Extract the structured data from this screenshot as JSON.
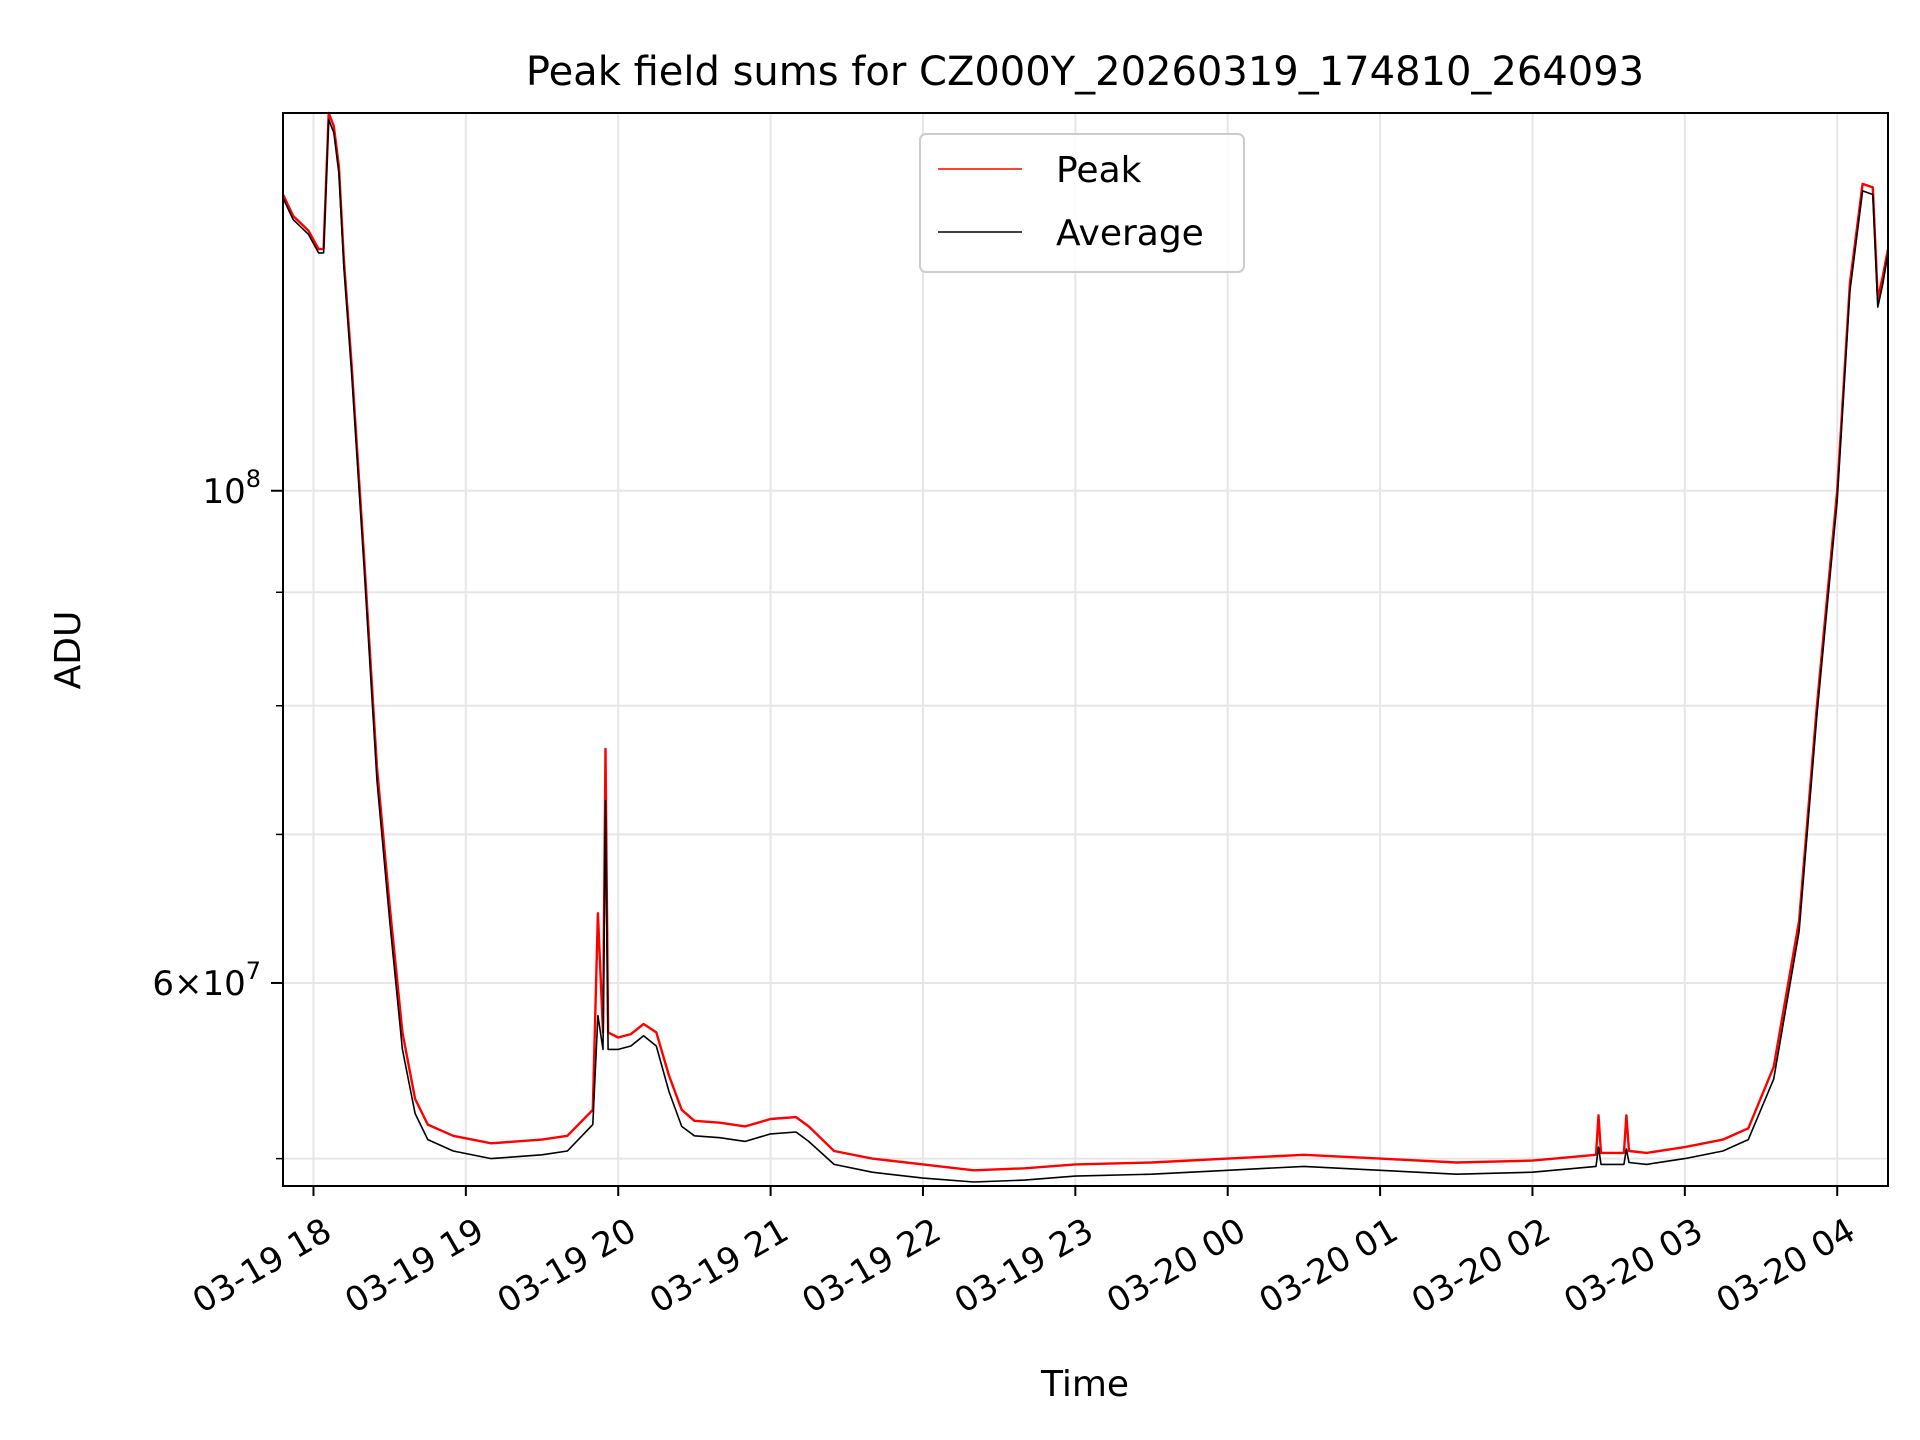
{
  "chart_data": {
    "type": "line",
    "title": "Peak field sums for CZ000Y_20260319_174810_264093",
    "xlabel": "Time",
    "ylabel": "ADU",
    "x_axis": {
      "kind": "datetime",
      "xlim": [
        "2026-03-19 17:48",
        "2026-03-20 04:20"
      ],
      "ticks": [
        {
          "t": "2026-03-19 18:00",
          "label": "03-19 18"
        },
        {
          "t": "2026-03-19 19:00",
          "label": "03-19 19"
        },
        {
          "t": "2026-03-19 20:00",
          "label": "03-19 20"
        },
        {
          "t": "2026-03-19 21:00",
          "label": "03-19 21"
        },
        {
          "t": "2026-03-19 22:00",
          "label": "03-19 22"
        },
        {
          "t": "2026-03-19 23:00",
          "label": "03-19 23"
        },
        {
          "t": "2026-03-20 00:00",
          "label": "03-20 00"
        },
        {
          "t": "2026-03-20 01:00",
          "label": "03-20 01"
        },
        {
          "t": "2026-03-20 02:00",
          "label": "03-20 02"
        },
        {
          "t": "2026-03-20 03:00",
          "label": "03-20 03"
        },
        {
          "t": "2026-03-20 04:00",
          "label": "03-20 04"
        }
      ]
    },
    "y_axis": {
      "scale": "log",
      "ylim": [
        48600000,
        148000000
      ],
      "major_ticks": [
        {
          "value": 100000000,
          "base": "10",
          "exp": "8"
        },
        {
          "value": 60000000,
          "mantissa": "6",
          "times": "×",
          "base": "10",
          "exp": "7"
        }
      ],
      "minor_ticks": [
        50000000,
        70000000,
        80000000,
        90000000,
        200000000
      ]
    },
    "grid": true,
    "legend": {
      "placement": "upper-center",
      "entries": [
        "Peak",
        "Average"
      ]
    },
    "series": [
      {
        "name": "Peak",
        "color": "#ff0000",
        "points": [
          [
            "2026-03-19 17:48",
            136000000
          ],
          [
            "2026-03-19 17:52",
            133000000
          ],
          [
            "2026-03-19 17:58",
            131000000
          ],
          [
            "2026-03-19 18:02",
            128500000
          ],
          [
            "2026-03-19 18:04",
            128500000
          ],
          [
            "2026-03-19 18:06",
            148000000
          ],
          [
            "2026-03-19 18:08",
            146000000
          ],
          [
            "2026-03-19 18:10",
            140000000
          ],
          [
            "2026-03-19 18:12",
            127000000
          ],
          [
            "2026-03-19 18:15",
            114000000
          ],
          [
            "2026-03-19 18:20",
            93000000
          ],
          [
            "2026-03-19 18:25",
            75000000
          ],
          [
            "2026-03-19 18:30",
            65000000
          ],
          [
            "2026-03-19 18:35",
            57000000
          ],
          [
            "2026-03-19 18:40",
            53200000
          ],
          [
            "2026-03-19 18:45",
            51800000
          ],
          [
            "2026-03-19 18:55",
            51200000
          ],
          [
            "2026-03-19 19:10",
            50800000
          ],
          [
            "2026-03-19 19:30",
            51000000
          ],
          [
            "2026-03-19 19:40",
            51200000
          ],
          [
            "2026-03-19 19:50",
            52600000
          ],
          [
            "2026-03-19 19:52",
            64500000
          ],
          [
            "2026-03-19 19:54",
            57000000
          ],
          [
            "2026-03-19 19:55",
            76500000
          ],
          [
            "2026-03-19 19:56",
            57000000
          ],
          [
            "2026-03-19 20:00",
            56700000
          ],
          [
            "2026-03-19 20:05",
            56900000
          ],
          [
            "2026-03-19 20:10",
            57500000
          ],
          [
            "2026-03-19 20:15",
            57000000
          ],
          [
            "2026-03-19 20:20",
            54500000
          ],
          [
            "2026-03-19 20:25",
            52600000
          ],
          [
            "2026-03-19 20:30",
            52000000
          ],
          [
            "2026-03-19 20:40",
            51900000
          ],
          [
            "2026-03-19 20:50",
            51700000
          ],
          [
            "2026-03-19 21:00",
            52100000
          ],
          [
            "2026-03-19 21:10",
            52200000
          ],
          [
            "2026-03-19 21:15",
            51700000
          ],
          [
            "2026-03-19 21:25",
            50400000
          ],
          [
            "2026-03-19 21:40",
            50000000
          ],
          [
            "2026-03-19 22:00",
            49700000
          ],
          [
            "2026-03-19 22:20",
            49400000
          ],
          [
            "2026-03-19 22:40",
            49500000
          ],
          [
            "2026-03-19 23:00",
            49700000
          ],
          [
            "2026-03-19 23:30",
            49800000
          ],
          [
            "2026-03-20 00:00",
            50000000
          ],
          [
            "2026-03-20 00:30",
            50200000
          ],
          [
            "2026-03-20 01:00",
            50000000
          ],
          [
            "2026-03-20 01:30",
            49800000
          ],
          [
            "2026-03-20 02:00",
            49900000
          ],
          [
            "2026-03-20 02:25",
            50200000
          ],
          [
            "2026-03-20 02:26",
            52300000
          ],
          [
            "2026-03-20 02:27",
            50300000
          ],
          [
            "2026-03-20 02:36",
            50300000
          ],
          [
            "2026-03-20 02:37",
            52300000
          ],
          [
            "2026-03-20 02:38",
            50400000
          ],
          [
            "2026-03-20 02:45",
            50300000
          ],
          [
            "2026-03-20 03:00",
            50600000
          ],
          [
            "2026-03-20 03:15",
            51000000
          ],
          [
            "2026-03-20 03:25",
            51600000
          ],
          [
            "2026-03-20 03:35",
            55000000
          ],
          [
            "2026-03-20 03:45",
            64000000
          ],
          [
            "2026-03-20 03:52",
            80000000
          ],
          [
            "2026-03-20 04:00",
            100000000
          ],
          [
            "2026-03-20 04:05",
            124000000
          ],
          [
            "2026-03-20 04:10",
            137500000
          ],
          [
            "2026-03-20 04:14",
            137000000
          ],
          [
            "2026-03-20 04:16",
            122000000
          ],
          [
            "2026-03-20 04:18",
            125000000
          ],
          [
            "2026-03-20 04:20",
            128500000
          ]
        ]
      },
      {
        "name": "Average",
        "color": "#000000",
        "points": [
          [
            "2026-03-19 17:48",
            135500000
          ],
          [
            "2026-03-19 17:52",
            132500000
          ],
          [
            "2026-03-19 17:58",
            130500000
          ],
          [
            "2026-03-19 18:02",
            128000000
          ],
          [
            "2026-03-19 18:04",
            128000000
          ],
          [
            "2026-03-19 18:06",
            147000000
          ],
          [
            "2026-03-19 18:08",
            145000000
          ],
          [
            "2026-03-19 18:10",
            139000000
          ],
          [
            "2026-03-19 18:12",
            126000000
          ],
          [
            "2026-03-19 18:15",
            113000000
          ],
          [
            "2026-03-19 18:20",
            92000000
          ],
          [
            "2026-03-19 18:25",
            74000000
          ],
          [
            "2026-03-19 18:30",
            64000000
          ],
          [
            "2026-03-19 18:35",
            56000000
          ],
          [
            "2026-03-19 18:40",
            52400000
          ],
          [
            "2026-03-19 18:45",
            51000000
          ],
          [
            "2026-03-19 18:55",
            50400000
          ],
          [
            "2026-03-19 19:10",
            50000000
          ],
          [
            "2026-03-19 19:30",
            50200000
          ],
          [
            "2026-03-19 19:40",
            50400000
          ],
          [
            "2026-03-19 19:50",
            51800000
          ],
          [
            "2026-03-19 19:52",
            58000000
          ],
          [
            "2026-03-19 19:54",
            56000000
          ],
          [
            "2026-03-19 19:55",
            72500000
          ],
          [
            "2026-03-19 19:56",
            56000000
          ],
          [
            "2026-03-19 20:00",
            56000000
          ],
          [
            "2026-03-19 20:05",
            56200000
          ],
          [
            "2026-03-19 20:10",
            56800000
          ],
          [
            "2026-03-19 20:15",
            56200000
          ],
          [
            "2026-03-19 20:20",
            53600000
          ],
          [
            "2026-03-19 20:25",
            51700000
          ],
          [
            "2026-03-19 20:30",
            51200000
          ],
          [
            "2026-03-19 20:40",
            51100000
          ],
          [
            "2026-03-19 20:50",
            50900000
          ],
          [
            "2026-03-19 21:00",
            51300000
          ],
          [
            "2026-03-19 21:10",
            51400000
          ],
          [
            "2026-03-19 21:15",
            50900000
          ],
          [
            "2026-03-19 21:25",
            49700000
          ],
          [
            "2026-03-19 21:40",
            49300000
          ],
          [
            "2026-03-19 22:00",
            49000000
          ],
          [
            "2026-03-19 22:20",
            48800000
          ],
          [
            "2026-03-19 22:40",
            48900000
          ],
          [
            "2026-03-19 23:00",
            49100000
          ],
          [
            "2026-03-19 23:30",
            49200000
          ],
          [
            "2026-03-20 00:00",
            49400000
          ],
          [
            "2026-03-20 00:30",
            49600000
          ],
          [
            "2026-03-20 01:00",
            49400000
          ],
          [
            "2026-03-20 01:30",
            49200000
          ],
          [
            "2026-03-20 02:00",
            49300000
          ],
          [
            "2026-03-20 02:25",
            49600000
          ],
          [
            "2026-03-20 02:26",
            50600000
          ],
          [
            "2026-03-20 02:27",
            49700000
          ],
          [
            "2026-03-20 02:36",
            49700000
          ],
          [
            "2026-03-20 02:37",
            50500000
          ],
          [
            "2026-03-20 02:38",
            49800000
          ],
          [
            "2026-03-20 02:45",
            49700000
          ],
          [
            "2026-03-20 03:00",
            50000000
          ],
          [
            "2026-03-20 03:15",
            50400000
          ],
          [
            "2026-03-20 03:25",
            51000000
          ],
          [
            "2026-03-20 03:35",
            54300000
          ],
          [
            "2026-03-20 03:45",
            63300000
          ],
          [
            "2026-03-20 03:52",
            79200000
          ],
          [
            "2026-03-20 04:00",
            99000000
          ],
          [
            "2026-03-20 04:05",
            123000000
          ],
          [
            "2026-03-20 04:10",
            136500000
          ],
          [
            "2026-03-20 04:14",
            136000000
          ],
          [
            "2026-03-20 04:16",
            121000000
          ],
          [
            "2026-03-20 04:18",
            124000000
          ],
          [
            "2026-03-20 04:20",
            128000000
          ]
        ]
      }
    ]
  }
}
